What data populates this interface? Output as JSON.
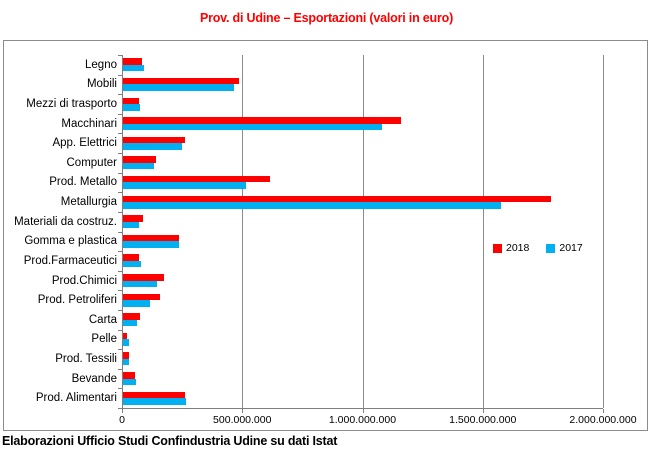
{
  "title": "Prov. di Udine – Esportazioni (valori in euro)",
  "footer": "Elaborazioni Ufficio Studi Confindustria Udine su dati Istat",
  "colors": {
    "title": "#FF0000",
    "series_2018": "#FF0000",
    "series_2017": "#00B0F0",
    "gridline": "#8c8c8c",
    "axis": "#7f7f7f",
    "text": "#000000"
  },
  "chart_data": {
    "type": "bar",
    "orientation": "horizontal",
    "title": "Prov. di Udine – Esportazioni (valori in euro)",
    "xlabel": "",
    "ylabel": "",
    "xlim": [
      0,
      2000000000
    ],
    "grid": "vertical",
    "legend_position": "inside-middle-right",
    "categories": [
      "Legno",
      "Mobili",
      "Mezzi di trasporto",
      "Macchinari",
      "App. Elettrici",
      "Computer",
      "Prod. Metallo",
      "Metallurgia",
      "Materiali da costruz.",
      "Gomma e plastica",
      "Prod.Farmaceutici",
      "Prod.Chimici",
      "Prod. Petroliferi",
      "Carta",
      "Pelle",
      "Prod. Tessili",
      "Bevande",
      "Prod. Alimentari"
    ],
    "series": [
      {
        "name": "2018",
        "color": "#FF0000",
        "values": [
          85000000,
          485000000,
          70000000,
          1160000000,
          263000000,
          142000000,
          617000000,
          1785000000,
          86000000,
          238000000,
          71000000,
          174000000,
          157000000,
          74000000,
          22000000,
          30000000,
          55000000,
          260000000
        ]
      },
      {
        "name": "2017",
        "color": "#00B0F0",
        "values": [
          92000000,
          465000000,
          73000000,
          1080000000,
          250000000,
          132000000,
          515000000,
          1575000000,
          70000000,
          236000000,
          78000000,
          147000000,
          118000000,
          61000000,
          30000000,
          31000000,
          57000000,
          268000000
        ]
      }
    ],
    "x_ticks": [
      {
        "value": 0,
        "label": "0"
      },
      {
        "value": 500000000,
        "label": "500.000.000"
      },
      {
        "value": 1000000000,
        "label": "1.000.000.000"
      },
      {
        "value": 1500000000,
        "label": "1.500.000.000"
      },
      {
        "value": 2000000000,
        "label": "2.000.000.000"
      }
    ]
  }
}
